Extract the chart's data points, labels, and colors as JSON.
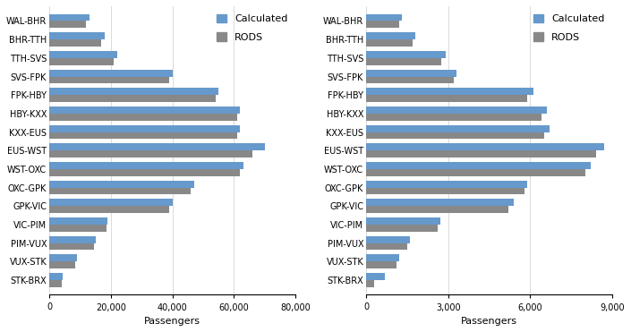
{
  "categories": [
    "WAL-BHR",
    "BHR-TTH",
    "TTH-SVS",
    "SVS-FPK",
    "FPK-HBY",
    "HBY-KXX",
    "KXX-EUS",
    "EUS-WST",
    "WST-OXC",
    "OXC-GPK",
    "GPK-VIC",
    "VIC-PIM",
    "PIM-VUX",
    "VUX-STK",
    "STK-BRX"
  ],
  "chart1": {
    "calculated": [
      13000,
      18000,
      22000,
      40000,
      55000,
      62000,
      62000,
      70000,
      63000,
      47000,
      40000,
      19000,
      15000,
      9000,
      4500
    ],
    "rods": [
      12000,
      17000,
      21000,
      39000,
      54000,
      61000,
      61000,
      66000,
      62000,
      46000,
      39000,
      18500,
      14500,
      8500,
      4000
    ],
    "xlim": [
      0,
      80000
    ],
    "xticks": [
      0,
      20000,
      40000,
      60000,
      80000
    ],
    "xticklabels": [
      "0",
      "20,000",
      "40,000",
      "60,000",
      "80,000"
    ],
    "xlabel": "Passengers"
  },
  "chart2": {
    "calculated": [
      1300,
      1800,
      2900,
      3300,
      6100,
      6600,
      6700,
      8700,
      8200,
      5900,
      5400,
      2700,
      1600,
      1200,
      700
    ],
    "rods": [
      1200,
      1700,
      2750,
      3200,
      5900,
      6400,
      6500,
      8400,
      8000,
      5800,
      5200,
      2600,
      1500,
      1100,
      300
    ],
    "xlim": [
      0,
      9000
    ],
    "xticks": [
      0,
      3000,
      6000,
      9000
    ],
    "xticklabels": [
      "0",
      "3,000",
      "6,000",
      "9,000"
    ],
    "xlabel": "Passengers"
  },
  "bar_color_calc": "#6699CC",
  "bar_color_rods": "#888888",
  "bar_height": 0.38,
  "legend_labels": [
    "Calculated",
    "RODS"
  ],
  "bg_color": "#ffffff",
  "tick_fontsize": 7.0,
  "label_fontsize": 8,
  "legend_fontsize": 8
}
